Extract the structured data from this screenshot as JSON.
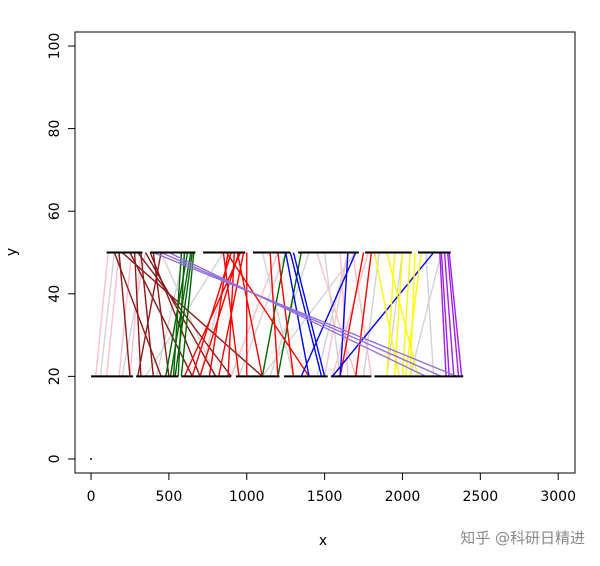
{
  "chart_data": {
    "type": "segments",
    "xlabel": "x",
    "ylabel": "y",
    "xlim": [
      -103,
      3108
    ],
    "ylim": [
      -3.4,
      103.4
    ],
    "xticks": [
      0,
      500,
      1000,
      1500,
      2000,
      2500,
      3000
    ],
    "yticks": [
      0,
      20,
      40,
      60,
      80,
      100
    ],
    "y_bottom": 20,
    "y_top": 50,
    "top_bars": [
      [
        100,
        330
      ],
      [
        380,
        670
      ],
      [
        720,
        990
      ],
      [
        1040,
        1280
      ],
      [
        1330,
        1720
      ],
      [
        1760,
        2060
      ],
      [
        2100,
        2310
      ]
    ],
    "bottom_bars": [
      [
        0,
        270
      ],
      [
        290,
        560
      ],
      [
        580,
        900
      ],
      [
        930,
        1210
      ],
      [
        1240,
        1520
      ],
      [
        1540,
        1800
      ],
      [
        1820,
        2390
      ]
    ],
    "point": {
      "x": 0,
      "y": 0,
      "color": "#000000"
    },
    "series": [
      {
        "color": "#d3d3d3",
        "x_bottom": [
          60,
          200,
          420,
          700,
          950,
          1150,
          1300,
          1450,
          1600,
          1750,
          1900,
          2050,
          2200,
          800,
          350,
          1100
        ],
        "x_top": [
          150,
          350,
          600,
          900,
          1250,
          1400,
          1100,
          1650,
          1500,
          1850,
          2000,
          2250,
          2150,
          450,
          850,
          1700
        ]
      },
      {
        "color": "#ffc0cb",
        "x_bottom": [
          30,
          100,
          180,
          250,
          1500,
          1650,
          1700,
          1550,
          900,
          1800
        ],
        "x_top": [
          110,
          180,
          260,
          320,
          1650,
          1600,
          1450,
          1780,
          1200,
          1680
        ]
      },
      {
        "color": "#8b1a1a",
        "x_bottom": [
          250,
          320,
          400,
          500,
          650,
          800,
          900,
          1100,
          300,
          450,
          700
        ],
        "x_top": [
          180,
          280,
          320,
          400,
          250,
          350,
          300,
          200,
          450,
          150,
          380
        ]
      },
      {
        "color": "#006400",
        "x_bottom": [
          480,
          510,
          540,
          560,
          580,
          530,
          1100,
          1200
        ],
        "x_top": [
          620,
          640,
          650,
          600,
          660,
          580,
          1250,
          1350
        ]
      },
      {
        "color": "#ff0000",
        "x_bottom": [
          650,
          700,
          760,
          820,
          880,
          950,
          1000,
          1100,
          1200,
          1300,
          1400,
          600,
          1600,
          1700
        ],
        "x_top": [
          900,
          950,
          880,
          980,
          920,
          850,
          1000,
          940,
          1150,
          1200,
          870,
          960,
          1750,
          1800
        ]
      },
      {
        "color": "#0000ff",
        "x_bottom": [
          1400,
          1480,
          1500,
          1550,
          1350,
          1600
        ],
        "x_top": [
          1250,
          1280,
          1300,
          2200,
          1700,
          1650
        ]
      },
      {
        "color": "#ffff00",
        "x_bottom": [
          1900,
          1950,
          2000,
          2050,
          2100,
          1980,
          2020
        ],
        "x_top": [
          1950,
          2000,
          2050,
          2080,
          1900,
          1820,
          2120
        ]
      },
      {
        "color": "#a020f0",
        "x_bottom": [
          2300,
          2330,
          2360,
          2380,
          2280
        ],
        "x_top": [
          2250,
          2270,
          2290,
          2300,
          2240
        ]
      },
      {
        "color": "#9370db",
        "x_bottom": [
          2350,
          2250,
          2150
        ],
        "x_top": [
          400,
          450,
          500
        ]
      }
    ]
  },
  "watermark": "知乎 @科研日精进"
}
